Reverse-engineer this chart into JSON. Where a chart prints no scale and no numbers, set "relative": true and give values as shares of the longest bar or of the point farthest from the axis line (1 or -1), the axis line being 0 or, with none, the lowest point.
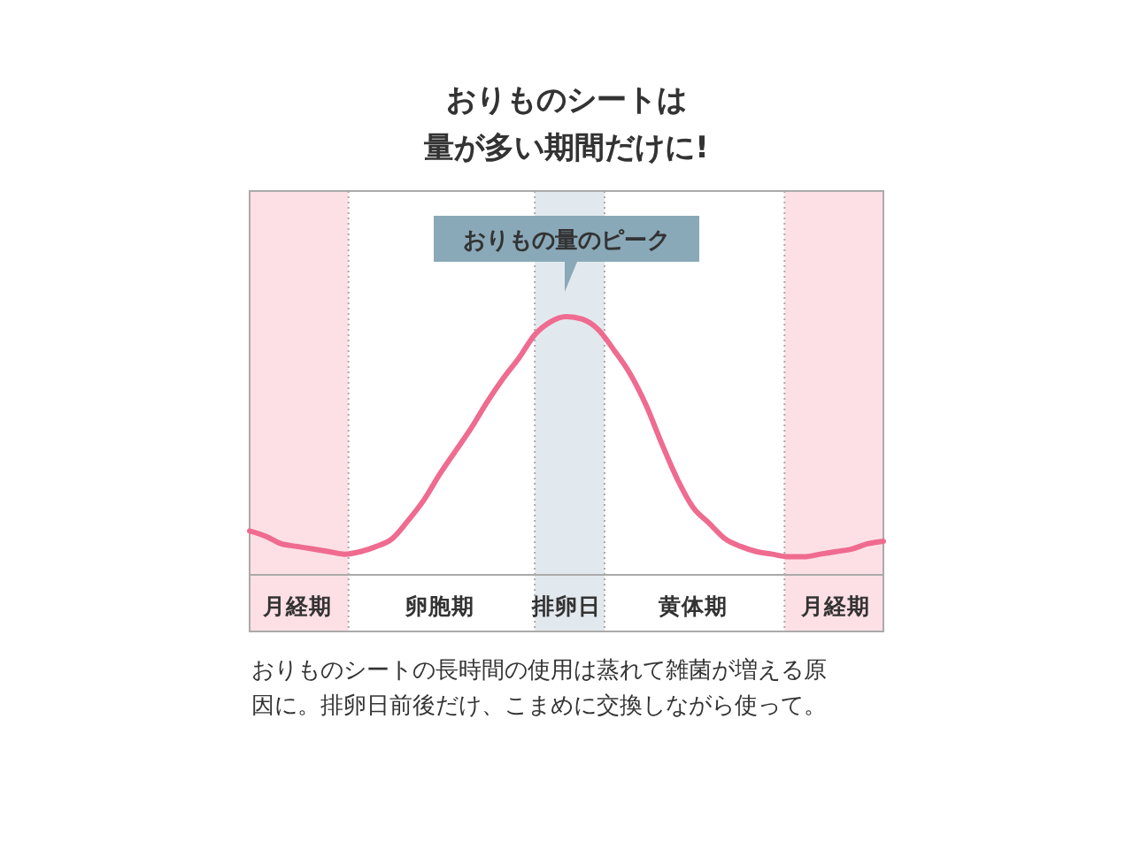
{
  "chart_data": {
    "type": "line",
    "title": "おりものシートは",
    "subtitle": "量が多い期間だけに!",
    "relative": true,
    "categories": [
      null,
      null,
      null,
      "月経期",
      null,
      null,
      null,
      null,
      null,
      null,
      null,
      null,
      "卵胞期",
      null,
      null,
      null,
      null,
      null,
      null,
      null,
      "排卵日",
      null,
      null,
      null,
      null,
      null,
      null,
      null,
      "黄体期",
      null,
      null,
      null,
      null,
      null,
      null,
      null,
      null,
      "月経期",
      null,
      null,
      null
    ],
    "series": [
      {
        "color": "#ef6b8f",
        "values": [
          0.17,
          0.15,
          0.12,
          0.11,
          0.1,
          0.09,
          0.08,
          0.09,
          0.11,
          0.14,
          0.21,
          0.29,
          0.39,
          0.48,
          0.57,
          0.67,
          0.76,
          0.84,
          0.93,
          0.98,
          1,
          0.99,
          0.95,
          0.87,
          0.78,
          0.66,
          0.51,
          0.37,
          0.26,
          0.2,
          0.14,
          0.11,
          0.09,
          0.08,
          0.07,
          0.07,
          0.08,
          0.09,
          0.1,
          0.12,
          0.13
        ]
      }
    ],
    "annotations": [
      {
        "text": "おりもの量のピーク",
        "x": "排卵日",
        "y": 1
      },
      "おりものシートの長時間の使用は蒸れて雑菌が増える原因に。排卵日前後だけ、こまめに交換しながら使って。"
    ]
  }
}
